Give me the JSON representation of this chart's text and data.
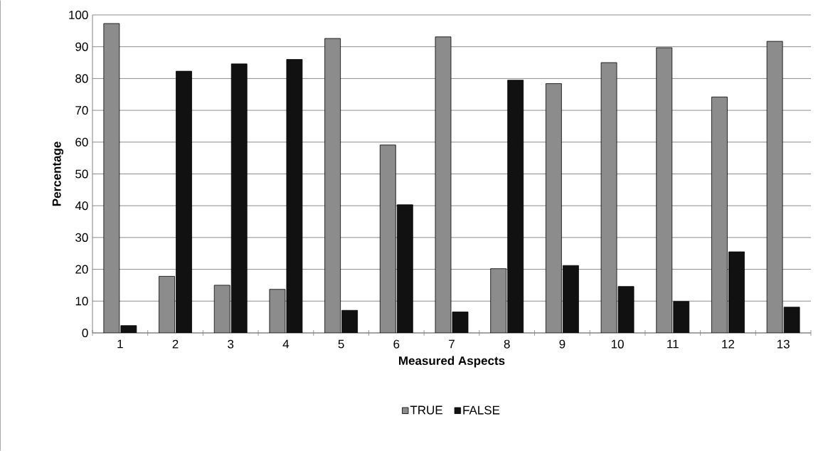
{
  "chart_data": {
    "type": "bar",
    "xlabel": "Measured Aspects",
    "ylabel": "Percentage",
    "categories": [
      "1",
      "2",
      "3",
      "4",
      "5",
      "6",
      "7",
      "8",
      "9",
      "10",
      "11",
      "12",
      "13"
    ],
    "series": [
      {
        "name": "TRUE",
        "color": "#8c8c8c",
        "values": [
          97.3,
          17.8,
          15.0,
          13.7,
          92.6,
          59.1,
          93.1,
          20.2,
          78.4,
          85.0,
          89.7,
          74.2,
          91.7
        ]
      },
      {
        "name": "FALSE",
        "color": "#111111",
        "values": [
          2.3,
          82.3,
          84.6,
          86.0,
          7.1,
          40.3,
          6.6,
          79.5,
          21.2,
          14.6,
          9.9,
          25.5,
          8.1
        ]
      }
    ],
    "ylim": [
      0,
      100
    ],
    "yticks": [
      0,
      10,
      20,
      30,
      40,
      50,
      60,
      70,
      80,
      90,
      100
    ],
    "grid": "y",
    "legend": "bottom"
  }
}
